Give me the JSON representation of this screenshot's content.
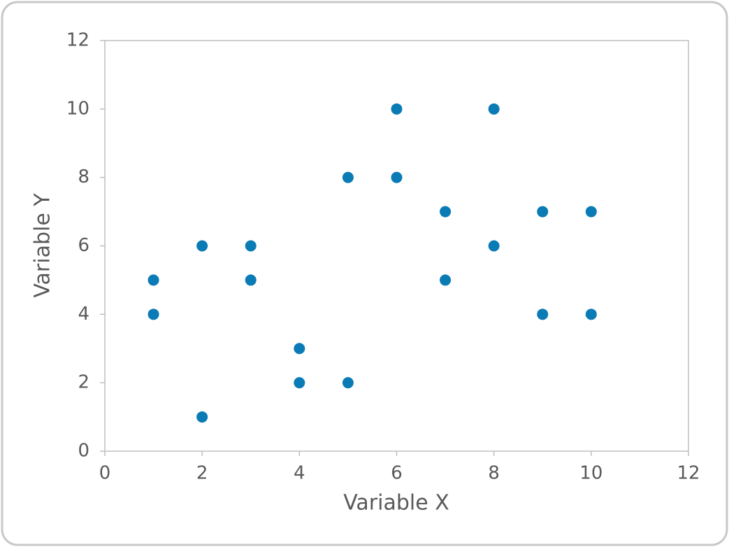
{
  "chart_data": {
    "type": "scatter",
    "x_label": "Variable X",
    "y_label": "Variable Y",
    "x": [
      1,
      1,
      2,
      2,
      3,
      3,
      4,
      4,
      5,
      5,
      6,
      6,
      7,
      7,
      8,
      8,
      9,
      9,
      10,
      10
    ],
    "values": [
      5,
      4,
      6,
      1,
      6,
      5,
      3,
      2,
      8,
      2,
      10,
      8,
      7,
      5,
      10,
      6,
      7,
      4,
      7,
      4
    ],
    "color": "#0a7bb5",
    "xlim": [
      0,
      12
    ],
    "xticks": [
      0,
      2,
      4,
      6,
      8,
      10,
      12
    ],
    "ylim": [
      0,
      12
    ],
    "yticks": [
      0,
      2,
      4,
      6,
      8,
      10,
      12
    ],
    "grid": false
  }
}
